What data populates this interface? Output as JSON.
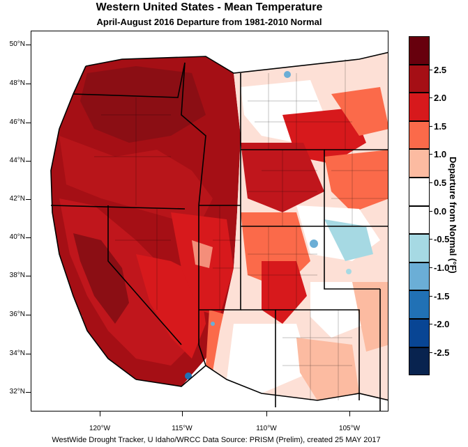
{
  "title": "Western United States - Mean Temperature",
  "subtitle": "April-August 2016  Departure from 1981-2010 Normal",
  "footer": "WestWide Drought Tracker, U Idaho/WRCC Data Source: PRISM (Prelim), created 25 MAY 2017",
  "map": {
    "lat_labels": [
      "50°N",
      "48°N",
      "46°N",
      "44°N",
      "42°N",
      "40°N",
      "38°N",
      "36°N",
      "34°N",
      "32°N"
    ],
    "lon_labels": [
      "120°W",
      "115°W",
      "110°W",
      "105°W"
    ]
  },
  "colorbar": {
    "title": "Departure from Normal (°F)",
    "labels": [
      "2.5",
      "2.0",
      "1.5",
      "1.0",
      "0.5",
      "0.0",
      "-0.5",
      "-1.0",
      "-1.5",
      "-2.0",
      "-2.5"
    ],
    "colors": [
      "#67000d",
      "#a50f15",
      "#d7191c",
      "#fb6a4a",
      "#fcbba1",
      "#ffffff",
      "#ffffff",
      "#a6d9e3",
      "#6baed6",
      "#2171b5",
      "#084594",
      "#08234f"
    ]
  }
}
